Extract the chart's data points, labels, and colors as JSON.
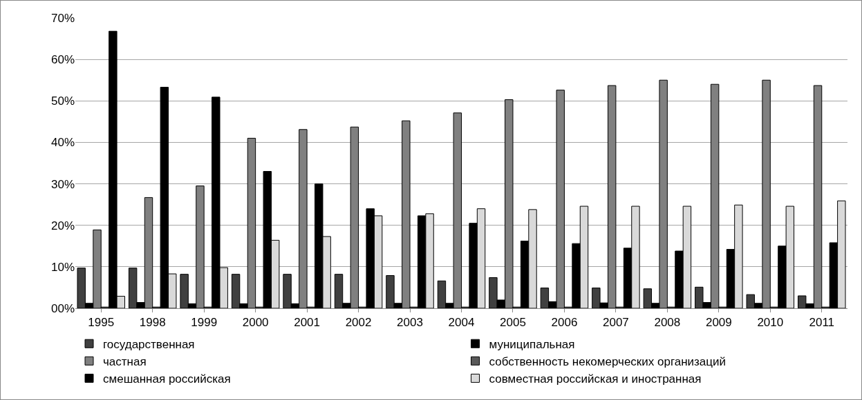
{
  "chart_data": {
    "type": "bar",
    "categories": [
      "1995",
      "1998",
      "1999",
      "2000",
      "2001",
      "2002",
      "2003",
      "2004",
      "2005",
      "2006",
      "2007",
      "2008",
      "2009",
      "2010",
      "2011"
    ],
    "series": [
      {
        "name": "государственная",
        "color": "#404040",
        "values": [
          9.7,
          9.7,
          8.2,
          8.2,
          8.2,
          8.2,
          7.9,
          6.6,
          7.4,
          4.9,
          4.9,
          4.7,
          5.1,
          3.3,
          3.0
        ]
      },
      {
        "name": "муниципальная",
        "color": "#000000",
        "values": [
          1.2,
          1.4,
          1.1,
          1.1,
          1.1,
          1.2,
          1.2,
          1.2,
          2.0,
          1.6,
          1.3,
          1.2,
          1.4,
          1.2,
          1.1
        ]
      },
      {
        "name": "частная",
        "color": "#808080",
        "values": [
          18.9,
          26.7,
          29.5,
          41.0,
          43.1,
          43.7,
          45.2,
          47.1,
          50.3,
          52.6,
          53.7,
          55.0,
          54.0,
          55.0,
          53.7
        ]
      },
      {
        "name": "собственность некомерческих организаций",
        "color": "#595959",
        "values": [
          0.3,
          0.3,
          0.3,
          0.3,
          0.3,
          0.3,
          0.3,
          0.3,
          0.3,
          0.3,
          0.3,
          0.3,
          0.3,
          0.3,
          0.3
        ]
      },
      {
        "name": "смешанная российская",
        "color": "#000000",
        "values": [
          66.8,
          53.3,
          50.9,
          33.0,
          30.0,
          24.0,
          22.3,
          20.5,
          16.2,
          15.6,
          14.5,
          13.8,
          14.2,
          15.0,
          15.8
        ]
      },
      {
        "name": "совместная российская и иностранная",
        "color": "#d9d9d9",
        "values": [
          2.9,
          8.3,
          9.8,
          16.4,
          17.3,
          22.3,
          22.8,
          24.0,
          23.8,
          24.6,
          24.6,
          24.6,
          24.9,
          24.6,
          25.9
        ]
      }
    ],
    "ylim": [
      0,
      70
    ],
    "yticks": [
      {
        "value": 0,
        "label": "00%"
      },
      {
        "value": 10,
        "label": "10%"
      },
      {
        "value": 20,
        "label": "20%"
      },
      {
        "value": 30,
        "label": "30%"
      },
      {
        "value": 40,
        "label": "40%"
      },
      {
        "value": 50,
        "label": "50%"
      },
      {
        "value": 60,
        "label": "60%"
      },
      {
        "value": 70,
        "label": "70%"
      }
    ],
    "grid": "y",
    "legend": "bottom"
  }
}
